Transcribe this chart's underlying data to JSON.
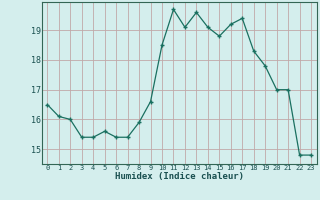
{
  "x": [
    0,
    1,
    2,
    3,
    4,
    5,
    6,
    7,
    8,
    9,
    10,
    11,
    12,
    13,
    14,
    15,
    16,
    17,
    18,
    19,
    20,
    21,
    22,
    23
  ],
  "y": [
    16.5,
    16.1,
    16.0,
    15.4,
    15.4,
    15.6,
    15.4,
    15.4,
    15.9,
    16.6,
    18.5,
    19.7,
    19.1,
    19.6,
    19.1,
    18.8,
    19.2,
    19.4,
    18.3,
    17.8,
    17.0,
    17.0,
    14.8,
    14.8
  ],
  "ylim": [
    14.5,
    19.95
  ],
  "yticks": [
    15,
    16,
    17,
    18,
    19
  ],
  "xlabel": "Humidex (Indice chaleur)",
  "line_color": "#1a7060",
  "marker_color": "#1a7060",
  "bg_color": "#d4eeed",
  "grid_color": "#c0a8a8",
  "axis_label_color": "#1a5050",
  "figsize": [
    3.2,
    2.0
  ],
  "dpi": 100
}
